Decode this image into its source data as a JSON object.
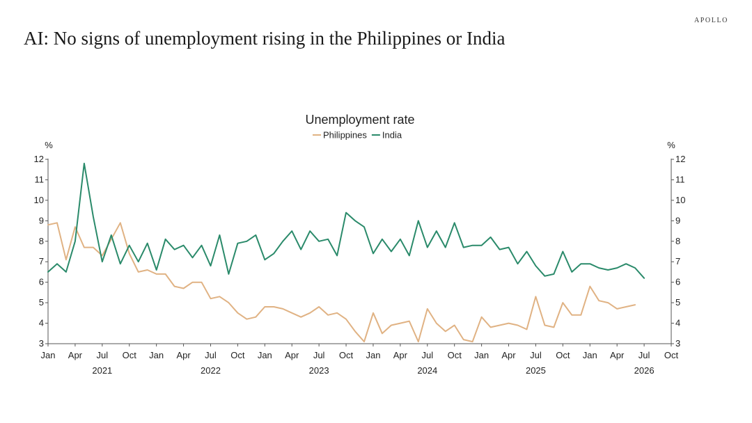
{
  "brand": "APOLLO",
  "headline": "AI: No signs of unemployment rising in the Philippines or India",
  "chart_data": {
    "type": "line",
    "title": "Unemployment rate",
    "y_unit_left": "%",
    "y_unit_right": "%",
    "ylim": [
      3,
      12
    ],
    "yticks": [
      "3",
      "4",
      "5",
      "6",
      "7",
      "8",
      "9",
      "10",
      "11",
      "12"
    ],
    "xlim": [
      "2021-01",
      "2026-10"
    ],
    "x_month_ticks": [
      "Jan",
      "Apr",
      "Jul",
      "Oct",
      "Jan",
      "Apr",
      "Jul",
      "Oct",
      "Jan",
      "Apr",
      "Jul",
      "Oct",
      "Jan",
      "Apr",
      "Jul",
      "Oct",
      "Jan",
      "Apr",
      "Jul",
      "Oct",
      "Jan",
      "Apr",
      "Jul",
      "Oct"
    ],
    "x_year_ticks": [
      "2021",
      "2022",
      "2023",
      "2024",
      "2025",
      "2026"
    ],
    "grid": false,
    "legend_position": "top-center",
    "series": [
      {
        "name": "Philippines",
        "color": "#e0b283",
        "x": [
          "2021-01",
          "2021-02",
          "2021-03",
          "2021-04",
          "2021-05",
          "2021-06",
          "2021-07",
          "2021-08",
          "2021-09",
          "2021-10",
          "2021-11",
          "2021-12",
          "2022-01",
          "2022-02",
          "2022-03",
          "2022-04",
          "2022-05",
          "2022-06",
          "2022-07",
          "2022-08",
          "2022-09",
          "2022-10",
          "2022-11",
          "2022-12",
          "2023-01",
          "2023-02",
          "2023-03",
          "2023-04",
          "2023-05",
          "2023-06",
          "2023-07",
          "2023-08",
          "2023-09",
          "2023-10",
          "2023-11",
          "2023-12",
          "2024-01",
          "2024-02",
          "2024-03",
          "2024-04",
          "2024-05",
          "2024-06",
          "2024-07",
          "2024-08",
          "2024-09",
          "2024-10",
          "2024-11",
          "2024-12",
          "2025-01",
          "2025-02",
          "2025-03",
          "2025-04",
          "2025-05",
          "2025-06",
          "2025-07",
          "2025-08",
          "2025-09",
          "2025-10",
          "2025-11",
          "2025-12",
          "2026-01",
          "2026-02",
          "2026-03",
          "2026-04",
          "2026-05",
          "2026-06"
        ],
        "values": [
          8.8,
          8.9,
          7.1,
          8.7,
          7.7,
          7.7,
          7.3,
          8.1,
          8.9,
          7.4,
          6.5,
          6.6,
          6.4,
          6.4,
          5.8,
          5.7,
          6.0,
          6.0,
          5.2,
          5.3,
          5.0,
          4.5,
          4.2,
          4.3,
          4.8,
          4.8,
          4.7,
          4.5,
          4.3,
          4.5,
          4.8,
          4.4,
          4.5,
          4.2,
          3.6,
          3.1,
          4.5,
          3.5,
          3.9,
          4.0,
          4.1,
          3.1,
          4.7,
          4.0,
          3.6,
          3.9,
          3.2,
          3.1,
          4.3,
          3.8,
          3.9,
          4.0,
          3.9,
          3.7,
          5.3,
          3.9,
          3.8,
          5.0,
          4.4,
          4.4,
          5.8,
          5.1,
          5.0,
          4.7,
          4.8,
          4.9
        ]
      },
      {
        "name": "India",
        "color": "#2a8a6a",
        "x": [
          "2021-01",
          "2021-02",
          "2021-03",
          "2021-04",
          "2021-05",
          "2021-06",
          "2021-07",
          "2021-08",
          "2021-09",
          "2021-10",
          "2021-11",
          "2021-12",
          "2022-01",
          "2022-02",
          "2022-03",
          "2022-04",
          "2022-05",
          "2022-06",
          "2022-07",
          "2022-08",
          "2022-09",
          "2022-10",
          "2022-11",
          "2022-12",
          "2023-01",
          "2023-02",
          "2023-03",
          "2023-04",
          "2023-05",
          "2023-06",
          "2023-07",
          "2023-08",
          "2023-09",
          "2023-10",
          "2023-11",
          "2023-12",
          "2024-01",
          "2024-02",
          "2024-03",
          "2024-04",
          "2024-05",
          "2024-06",
          "2024-07",
          "2024-08",
          "2024-09",
          "2024-10",
          "2024-11",
          "2024-12",
          "2025-01",
          "2025-02",
          "2025-03",
          "2025-04",
          "2025-05",
          "2025-06",
          "2025-07",
          "2025-08",
          "2025-09",
          "2025-10",
          "2025-11",
          "2025-12",
          "2026-01",
          "2026-02",
          "2026-03",
          "2026-04",
          "2026-05",
          "2026-06",
          "2026-07"
        ],
        "values": [
          6.5,
          6.9,
          6.5,
          8.0,
          11.8,
          9.2,
          7.0,
          8.3,
          6.9,
          7.8,
          7.0,
          7.9,
          6.6,
          8.1,
          7.6,
          7.8,
          7.2,
          7.8,
          6.8,
          8.3,
          6.4,
          7.9,
          8.0,
          8.3,
          7.1,
          7.4,
          8.0,
          8.5,
          7.6,
          8.5,
          8.0,
          8.1,
          7.3,
          9.4,
          9.0,
          8.7,
          7.4,
          8.1,
          7.5,
          8.1,
          7.3,
          9.0,
          7.7,
          8.5,
          7.7,
          8.9,
          7.7,
          7.8,
          7.8,
          8.2,
          7.6,
          7.7,
          6.9,
          7.5,
          6.8,
          6.3,
          6.4,
          7.5,
          6.5,
          6.9,
          6.9,
          6.7,
          6.6,
          6.7,
          6.9,
          6.7,
          6.2
        ]
      }
    ]
  }
}
